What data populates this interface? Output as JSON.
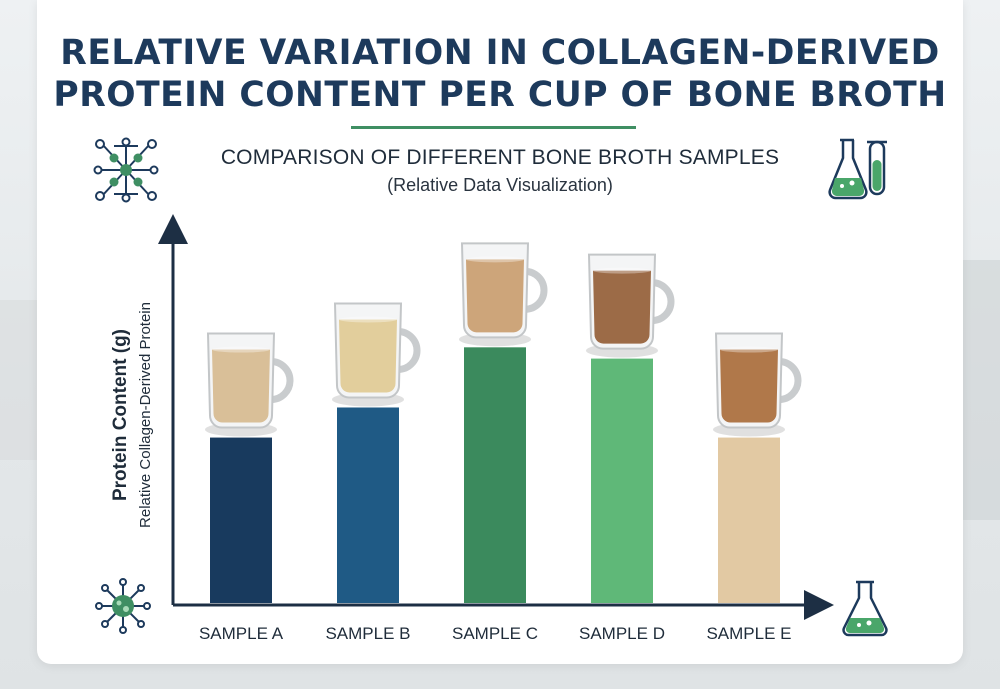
{
  "title_line1": "RELATIVE VARIATION IN COLLAGEN-DERIVED",
  "title_line2": "PROTEIN CONTENT PER CUP OF BONE BROTH",
  "subtitle": "COMPARISON OF DIFFERENT BONE BROTH SAMPLES",
  "subtitle2": "(Relative Data Visualization)",
  "colors": {
    "title": "#1d3a5c",
    "accent_green": "#3f8f63",
    "axis": "#1d2f44"
  },
  "icons": {
    "top_left": "molecule-network-icon",
    "top_right": "lab-flask-and-test-tube-icon",
    "bottom_left": "molecule-cluster-icon",
    "bottom_right": "erlenmeyer-flask-icon",
    "cup": "coffee-mug-icon"
  },
  "chart_data": {
    "type": "bar",
    "categories": [
      "SAMPLE A",
      "SAMPLE B",
      "SAMPLE C",
      "SAMPLE D",
      "SAMPLE E"
    ],
    "values": [
      4.4,
      5.2,
      6.8,
      6.5,
      4.4
    ],
    "bar_colors": [
      "#183a5e",
      "#1f5a85",
      "#3b8a5d",
      "#5fb878",
      "#e2c9a3"
    ],
    "broth_colors": [
      "#d9bf98",
      "#e2ce9c",
      "#cda57a",
      "#9c6b47",
      "#b0784a"
    ],
    "ylabel": "Protein Content (g)",
    "ylabel_sub": "Relative Collagen-Derived Protein",
    "xlabel": "",
    "ylim": [
      0,
      10
    ],
    "grid": false
  }
}
